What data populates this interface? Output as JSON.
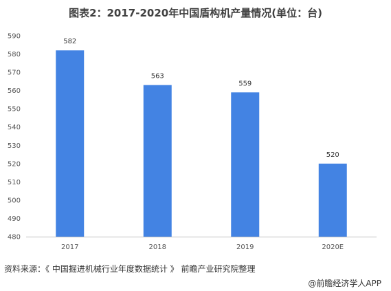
{
  "chart_data": {
    "type": "bar",
    "title": "图表2：2017-2020年中国盾构机产量情况(单位：台)",
    "categories": [
      "2017",
      "2018",
      "2019",
      "2020E"
    ],
    "values": [
      582,
      563,
      559,
      520
    ],
    "data_labels": [
      "582",
      "563",
      "559",
      "520"
    ],
    "xlabel": "",
    "ylabel": "",
    "ylim": [
      480,
      590
    ],
    "yticks": [
      480,
      490,
      500,
      510,
      520,
      530,
      540,
      550,
      560,
      570,
      580,
      590
    ],
    "grid": false,
    "legend": "none",
    "bar_color": "#4383E3",
    "source": "资料来源：《 中国掘进机械行业年度数据统计 》 前瞻产业研究院整理",
    "attribution": "@前瞻经济学人APP"
  }
}
